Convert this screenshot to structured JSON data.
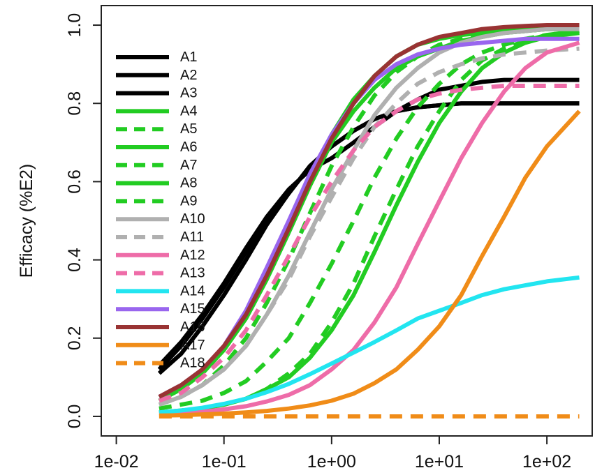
{
  "chart_data": {
    "type": "line",
    "title": "",
    "xlabel": "",
    "ylabel": "Efficacy (%E2)",
    "x_scale": "log10",
    "xlim": [
      0.01,
      200
    ],
    "ylim": [
      0,
      1
    ],
    "x_ticks": [
      {
        "value": 0.01,
        "label": "1e-02"
      },
      {
        "value": 0.1,
        "label": "1e-01"
      },
      {
        "value": 1,
        "label": "1e+00"
      },
      {
        "value": 10,
        "label": "1e+01"
      },
      {
        "value": 100,
        "label": "1e+02"
      }
    ],
    "y_ticks": [
      {
        "value": 0.0,
        "label": "0.0"
      },
      {
        "value": 0.2,
        "label": "0.2"
      },
      {
        "value": 0.4,
        "label": "0.4"
      },
      {
        "value": 0.6,
        "label": "0.6"
      },
      {
        "value": 0.8,
        "label": "0.8"
      },
      {
        "value": 1.0,
        "label": "1.0"
      }
    ],
    "grid": false,
    "legend_position": "left",
    "x": [
      0.025,
      0.04,
      0.063,
      0.1,
      0.16,
      0.25,
      0.4,
      0.63,
      1,
      1.6,
      2.5,
      4,
      6.3,
      10,
      16,
      25,
      40,
      63,
      100,
      200
    ],
    "series": [
      {
        "name": "A1",
        "color": "#000000",
        "dash": "solid",
        "values": [
          0.12,
          0.18,
          0.25,
          0.33,
          0.42,
          0.5,
          0.57,
          0.64,
          0.69,
          0.73,
          0.76,
          0.78,
          0.79,
          0.795,
          0.8,
          0.8,
          0.8,
          0.8,
          0.8,
          0.8
        ]
      },
      {
        "name": "A2",
        "color": "#000000",
        "dash": "solid",
        "values": [
          0.13,
          0.19,
          0.26,
          0.34,
          0.43,
          0.51,
          0.58,
          0.63,
          0.66,
          0.7,
          0.74,
          0.78,
          0.81,
          0.835,
          0.845,
          0.855,
          0.86,
          0.86,
          0.86,
          0.86
        ]
      },
      {
        "name": "A3",
        "color": "#000000",
        "dash": "solid",
        "values": [
          0.11,
          0.16,
          0.23,
          0.31,
          0.4,
          0.49,
          0.57,
          0.64,
          0.69,
          0.73,
          0.76,
          0.78,
          0.79,
          0.795,
          0.8,
          0.8,
          0.8,
          0.8,
          0.8,
          0.8
        ]
      },
      {
        "name": "A4",
        "color": "#22cc22",
        "dash": "solid",
        "values": [
          0.04,
          0.07,
          0.11,
          0.17,
          0.25,
          0.35,
          0.47,
          0.59,
          0.7,
          0.78,
          0.84,
          0.89,
          0.92,
          0.94,
          0.96,
          0.97,
          0.98,
          0.985,
          0.99,
          0.99
        ]
      },
      {
        "name": "A5",
        "color": "#22cc22",
        "dash": "dashed",
        "values": [
          0.02,
          0.03,
          0.04,
          0.06,
          0.09,
          0.14,
          0.2,
          0.29,
          0.39,
          0.5,
          0.61,
          0.71,
          0.79,
          0.85,
          0.9,
          0.93,
          0.95,
          0.965,
          0.975,
          0.985
        ]
      },
      {
        "name": "A6",
        "color": "#22cc22",
        "dash": "solid",
        "values": [
          0.01,
          0.015,
          0.02,
          0.03,
          0.045,
          0.07,
          0.1,
          0.15,
          0.22,
          0.31,
          0.42,
          0.54,
          0.65,
          0.75,
          0.83,
          0.89,
          0.93,
          0.955,
          0.97,
          0.98
        ]
      },
      {
        "name": "A7",
        "color": "#22cc22",
        "dash": "dashed",
        "values": [
          0.01,
          0.015,
          0.02,
          0.03,
          0.045,
          0.07,
          0.11,
          0.16,
          0.24,
          0.34,
          0.46,
          0.58,
          0.69,
          0.78,
          0.86,
          0.91,
          0.94,
          0.96,
          0.975,
          0.985
        ]
      },
      {
        "name": "A8",
        "color": "#22cc22",
        "dash": "solid",
        "values": [
          0.04,
          0.07,
          0.11,
          0.17,
          0.26,
          0.37,
          0.49,
          0.61,
          0.72,
          0.81,
          0.87,
          0.92,
          0.95,
          0.965,
          0.975,
          0.98,
          0.985,
          0.99,
          0.99,
          0.99
        ]
      },
      {
        "name": "A9",
        "color": "#22cc22",
        "dash": "dashed",
        "values": [
          0.03,
          0.05,
          0.08,
          0.13,
          0.2,
          0.29,
          0.4,
          0.52,
          0.64,
          0.74,
          0.82,
          0.88,
          0.92,
          0.95,
          0.965,
          0.975,
          0.98,
          0.985,
          0.99,
          0.99
        ]
      },
      {
        "name": "A10",
        "color": "#b0b0b0",
        "dash": "solid",
        "values": [
          0.03,
          0.05,
          0.08,
          0.12,
          0.18,
          0.26,
          0.36,
          0.47,
          0.58,
          0.68,
          0.77,
          0.84,
          0.89,
          0.93,
          0.955,
          0.97,
          0.98,
          0.985,
          0.99,
          0.99
        ]
      },
      {
        "name": "A11",
        "color": "#b0b0b0",
        "dash": "dashed",
        "values": [
          0.03,
          0.05,
          0.08,
          0.12,
          0.18,
          0.26,
          0.35,
          0.46,
          0.56,
          0.66,
          0.74,
          0.8,
          0.85,
          0.88,
          0.9,
          0.915,
          0.925,
          0.93,
          0.935,
          0.94
        ]
      },
      {
        "name": "A12",
        "color": "#ee6ca8",
        "dash": "solid",
        "values": [
          0.005,
          0.008,
          0.012,
          0.018,
          0.026,
          0.038,
          0.055,
          0.08,
          0.12,
          0.17,
          0.24,
          0.33,
          0.44,
          0.55,
          0.66,
          0.75,
          0.83,
          0.89,
          0.93,
          0.955
        ]
      },
      {
        "name": "A13",
        "color": "#ee6ca8",
        "dash": "dashed",
        "values": [
          0.04,
          0.06,
          0.1,
          0.15,
          0.22,
          0.31,
          0.41,
          0.51,
          0.6,
          0.68,
          0.74,
          0.78,
          0.81,
          0.825,
          0.835,
          0.84,
          0.845,
          0.845,
          0.845,
          0.845
        ]
      },
      {
        "name": "A14",
        "color": "#22e5f0",
        "dash": "solid",
        "values": [
          0.01,
          0.015,
          0.022,
          0.032,
          0.045,
          0.062,
          0.083,
          0.108,
          0.135,
          0.163,
          0.19,
          0.22,
          0.25,
          0.27,
          0.29,
          0.31,
          0.325,
          0.335,
          0.345,
          0.355
        ]
      },
      {
        "name": "A15",
        "color": "#9966ee",
        "dash": "solid",
        "values": [
          0.05,
          0.08,
          0.12,
          0.18,
          0.27,
          0.38,
          0.5,
          0.62,
          0.72,
          0.8,
          0.86,
          0.9,
          0.925,
          0.94,
          0.95,
          0.955,
          0.96,
          0.965,
          0.965,
          0.965
        ]
      },
      {
        "name": "A16",
        "color": "#993333",
        "dash": "solid",
        "values": [
          0.05,
          0.08,
          0.12,
          0.18,
          0.26,
          0.36,
          0.48,
          0.6,
          0.71,
          0.8,
          0.87,
          0.92,
          0.95,
          0.97,
          0.98,
          0.99,
          0.995,
          0.998,
          1.0,
          1.0
        ]
      },
      {
        "name": "A17",
        "color": "#f08c18",
        "dash": "solid",
        "values": [
          0.002,
          0.003,
          0.005,
          0.007,
          0.01,
          0.014,
          0.02,
          0.028,
          0.04,
          0.058,
          0.085,
          0.12,
          0.17,
          0.23,
          0.31,
          0.41,
          0.51,
          0.61,
          0.69,
          0.78
        ]
      },
      {
        "name": "A18",
        "color": "#f08c18",
        "dash": "dashed",
        "values": [
          0,
          0,
          0,
          0,
          0,
          0,
          0,
          0,
          0,
          0,
          0,
          0,
          0,
          0,
          0,
          0,
          0,
          0,
          0,
          0
        ]
      }
    ]
  }
}
